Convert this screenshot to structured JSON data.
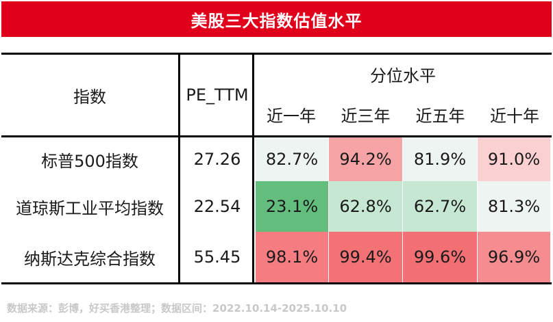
{
  "title": "美股三大指数估值水平",
  "table": {
    "col_index": "指数",
    "col_pe": "PE_TTM",
    "col_percentile": "分位水平",
    "periods": [
      "近一年",
      "近三年",
      "近五年",
      "近十年"
    ],
    "rows": [
      {
        "name": "标普500指数",
        "pe": "27.26",
        "pct": [
          "82.7%",
          "94.2%",
          "81.9%",
          "91.0%"
        ]
      },
      {
        "name": "道琼斯工业平均指数",
        "pe": "22.54",
        "pct": [
          "23.1%",
          "62.8%",
          "62.7%",
          "81.3%"
        ]
      },
      {
        "name": "纳斯达克综合指数",
        "pe": "55.45",
        "pct": [
          "98.1%",
          "99.4%",
          "99.6%",
          "96.9%"
        ]
      }
    ],
    "cell_colors": [
      [
        "#eef4f1",
        "#f5a3a4",
        "#eef4f1",
        "#fbd0d2"
      ],
      [
        "#63bd7c",
        "#c6e7d1",
        "#c6e7d1",
        "#eef4f1"
      ],
      [
        "#f57c80",
        "#f27276",
        "#f27074",
        "#f58c8f"
      ]
    ]
  },
  "footer": "数据来源：彭博，好买香港整理；数据区间：2022.10.14-2025.10.10"
}
